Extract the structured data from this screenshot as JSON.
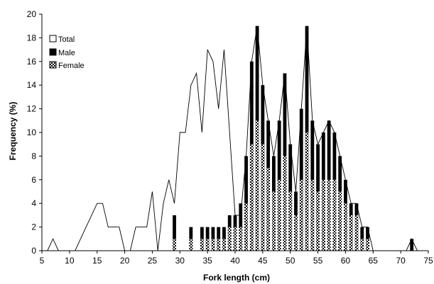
{
  "chart_data": {
    "type": "bar",
    "xlabel": "Fork length (cm)",
    "ylabel": "Frequency (%)",
    "xlim": [
      5,
      75
    ],
    "ylim": [
      0,
      20
    ],
    "x_ticks": [
      5,
      10,
      15,
      20,
      25,
      30,
      35,
      40,
      45,
      50,
      55,
      60,
      65,
      70,
      75
    ],
    "y_ticks": [
      0,
      2,
      4,
      6,
      8,
      10,
      12,
      14,
      16,
      18,
      20
    ],
    "grid": false,
    "legend_position": "top-left",
    "legend": [
      "Total",
      "Male",
      "Female"
    ],
    "colors": {
      "male": "#000000",
      "female_pattern": "#000000",
      "total_line": "#000000"
    },
    "series": [
      {
        "name": "Total",
        "style": "line",
        "x": [
          6,
          7,
          8,
          9,
          10,
          11,
          12,
          13,
          14,
          15,
          16,
          17,
          18,
          19,
          20,
          21,
          22,
          23,
          24,
          25,
          26,
          27,
          28,
          29,
          30,
          31,
          32,
          33,
          34,
          35,
          36,
          37,
          38,
          39,
          40,
          41,
          42,
          43,
          44,
          45,
          46,
          47,
          48,
          49,
          50,
          51,
          52,
          53,
          54,
          55,
          56,
          57,
          58,
          59,
          60,
          61,
          62,
          63,
          64,
          65,
          66,
          67,
          68,
          69,
          70,
          71,
          72,
          73
        ],
        "values": [
          0,
          1,
          0,
          0,
          0,
          0,
          1,
          2,
          3,
          4,
          4,
          2,
          2,
          2,
          0,
          0,
          2,
          2,
          2,
          5,
          0,
          4,
          6,
          4,
          10,
          10,
          14,
          15,
          10,
          17,
          16,
          12,
          17,
          10,
          3,
          3,
          8,
          16,
          19,
          14,
          11,
          8,
          11,
          15,
          9,
          5,
          12,
          19,
          11,
          9,
          10,
          11,
          10,
          8,
          6,
          4,
          4,
          2,
          2,
          0,
          0,
          0,
          0,
          0,
          0,
          0,
          1,
          0
        ]
      },
      {
        "name": "Male",
        "style": "bar",
        "x": [
          29,
          32,
          34,
          35,
          36,
          37,
          38,
          39,
          40,
          41,
          42,
          43,
          44,
          45,
          46,
          47,
          48,
          49,
          50,
          51,
          52,
          53,
          54,
          55,
          56,
          57,
          58,
          59,
          60,
          61,
          62,
          63,
          64,
          72
        ],
        "values": [
          3,
          2,
          2,
          2,
          2,
          2,
          2,
          3,
          3,
          4,
          8,
          16,
          19,
          14,
          11,
          8,
          11,
          15,
          9,
          5,
          12,
          19,
          11,
          9,
          10,
          11,
          10,
          8,
          6,
          4,
          4,
          2,
          2,
          1
        ]
      },
      {
        "name": "Female",
        "style": "bar",
        "x": [
          29,
          32,
          34,
          35,
          36,
          37,
          38,
          39,
          40,
          41,
          42,
          43,
          44,
          45,
          46,
          47,
          48,
          49,
          50,
          51,
          52,
          53,
          54,
          55,
          56,
          57,
          58,
          59,
          60,
          61,
          62,
          63,
          64
        ],
        "values": [
          1,
          1,
          1,
          1,
          1,
          1,
          1,
          2,
          2,
          2,
          4,
          9,
          11,
          9,
          7,
          5,
          6,
          8,
          5,
          3,
          6,
          10,
          6,
          5,
          6,
          6,
          6,
          5,
          4,
          3,
          3,
          1,
          1
        ]
      }
    ]
  }
}
